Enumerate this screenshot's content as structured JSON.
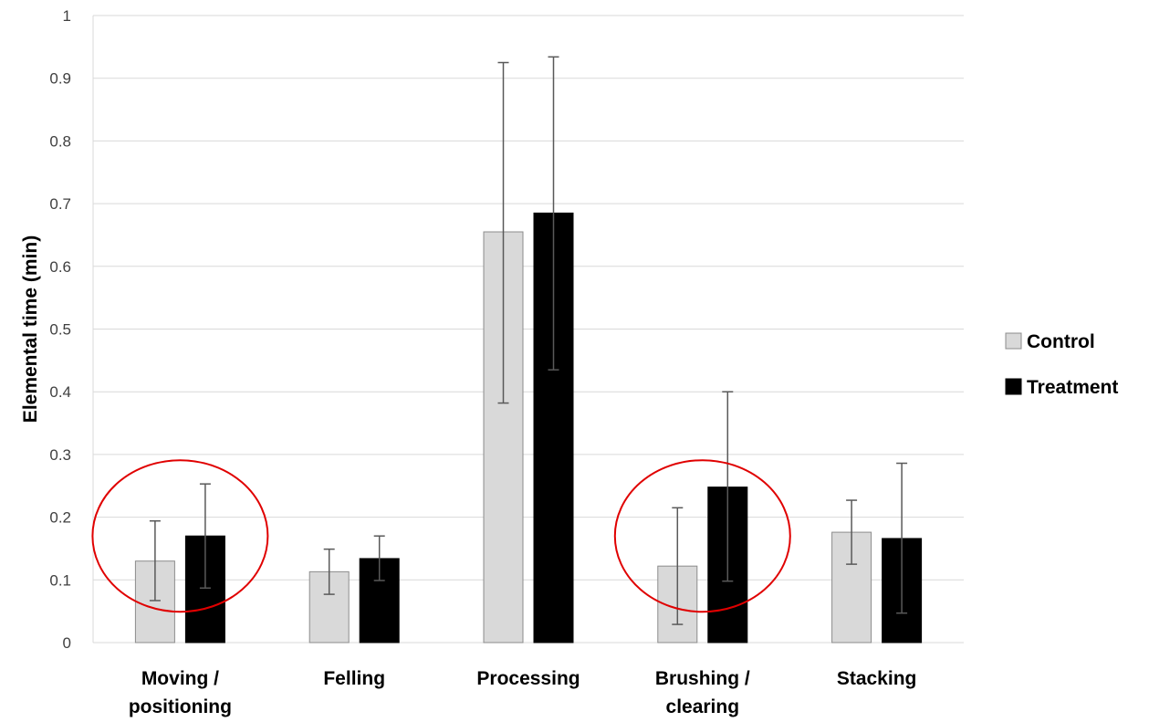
{
  "chart_data": {
    "type": "bar",
    "title": "",
    "xlabel": "",
    "ylabel": "Elemental time (min)",
    "ylim": [
      0,
      1
    ],
    "yticks": [
      "0",
      "0.1",
      "0.2",
      "0.3",
      "0.4",
      "0.5",
      "0.6",
      "0.7",
      "0.8",
      "0.9",
      "1"
    ],
    "grid": true,
    "legend_position": "right",
    "categories": [
      [
        "Moving /",
        "positioning"
      ],
      [
        "Felling"
      ],
      [
        "Processing"
      ],
      [
        "Brushing /",
        "clearing"
      ],
      [
        "Stacking"
      ]
    ],
    "series": [
      {
        "name": "Control",
        "color": "#d9d9d9",
        "values": [
          0.13,
          0.113,
          0.655,
          0.122,
          0.176
        ],
        "error_low": [
          0.067,
          0.077,
          0.382,
          0.029,
          0.125
        ],
        "error_high": [
          0.194,
          0.149,
          0.925,
          0.215,
          0.227
        ]
      },
      {
        "name": "Treatment",
        "color": "#000000",
        "values": [
          0.17,
          0.134,
          0.685,
          0.248,
          0.166
        ],
        "error_low": [
          0.087,
          0.099,
          0.435,
          0.098,
          0.047
        ],
        "error_high": [
          0.253,
          0.17,
          0.934,
          0.4,
          0.286
        ]
      }
    ],
    "annotations": [
      {
        "type": "ellipse",
        "color": "#e00000",
        "category_index": 0,
        "y_center": 0.17
      },
      {
        "type": "ellipse",
        "color": "#e00000",
        "category_index": 3,
        "y_center": 0.17
      }
    ]
  }
}
